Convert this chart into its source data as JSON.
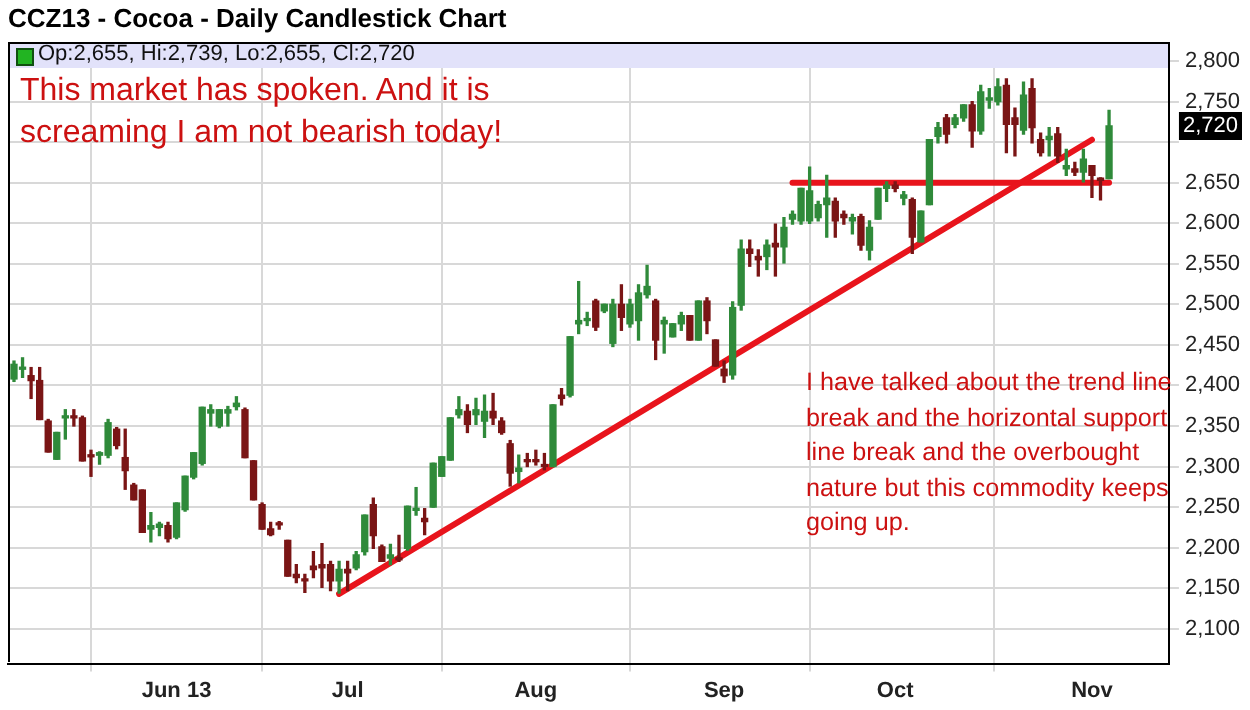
{
  "chart_data": {
    "type": "candlestick",
    "title": "CCZ13 - Cocoa - Daily Candlestick Chart",
    "categories": [
      null,
      null,
      null,
      null,
      null,
      null,
      null,
      null,
      null,
      null,
      null,
      null,
      null,
      null,
      null,
      null,
      null,
      null,
      null,
      "Jun 13",
      null,
      null,
      null,
      null,
      null,
      null,
      null,
      null,
      null,
      null,
      null,
      null,
      null,
      null,
      null,
      null,
      null,
      null,
      null,
      "Jul",
      null,
      null,
      null,
      null,
      null,
      null,
      null,
      null,
      null,
      null,
      null,
      null,
      null,
      null,
      null,
      null,
      null,
      null,
      null,
      null,
      null,
      "Aug",
      null,
      null,
      null,
      null,
      null,
      null,
      null,
      null,
      null,
      null,
      null,
      null,
      null,
      null,
      null,
      null,
      null,
      null,
      null,
      null,
      null,
      "Sep",
      null,
      null,
      null,
      null,
      null,
      null,
      null,
      null,
      null,
      null,
      null,
      null,
      null,
      null,
      null,
      null,
      null,
      null,
      null,
      "Oct",
      null,
      null,
      null,
      null,
      null,
      null,
      null,
      null,
      null,
      null,
      null,
      null,
      null,
      null,
      null,
      null,
      null,
      null,
      null,
      null,
      null,
      null,
      "Nov",
      null,
      null
    ],
    "ohlc": [
      [
        2408,
        2430,
        2405,
        2426
      ],
      [
        2420,
        2434,
        2410,
        2422
      ],
      [
        2412,
        2422,
        2384,
        2406
      ],
      [
        2406,
        2422,
        2358,
        2358
      ],
      [
        2356,
        2358,
        2318,
        2318
      ],
      [
        2309,
        2342,
        2309,
        2342
      ],
      [
        2360,
        2370,
        2334,
        2362
      ],
      [
        2362,
        2370,
        2350,
        2360
      ],
      [
        2360,
        2362,
        2307,
        2307
      ],
      [
        2314,
        2320,
        2288,
        2312
      ],
      [
        2314,
        2318,
        2303,
        2317
      ],
      [
        2314,
        2358,
        2311,
        2354
      ],
      [
        2346,
        2348,
        2322,
        2326
      ],
      [
        2311,
        2346,
        2272,
        2295
      ],
      [
        2277,
        2279,
        2259,
        2259
      ],
      [
        2271,
        2271,
        2219,
        2219
      ],
      [
        2223,
        2243,
        2207,
        2227
      ],
      [
        2225,
        2231,
        2215,
        2229
      ],
      [
        2227,
        2231,
        2207,
        2211
      ],
      [
        2213,
        2255,
        2211,
        2255
      ],
      [
        2247,
        2288,
        2245,
        2288
      ],
      [
        2287,
        2317,
        2285,
        2317
      ],
      [
        2304,
        2373,
        2302,
        2373
      ],
      [
        2366,
        2376,
        2350,
        2370
      ],
      [
        2350,
        2370,
        2348,
        2370
      ],
      [
        2366,
        2374,
        2350,
        2370
      ],
      [
        2374,
        2386,
        2370,
        2378
      ],
      [
        2370,
        2372,
        2311,
        2311
      ],
      [
        2307,
        2307,
        2259,
        2259
      ],
      [
        2253,
        2255,
        2223,
        2223
      ],
      [
        2223,
        2231,
        2215,
        2216
      ],
      [
        2229,
        2232,
        2223,
        2228
      ],
      [
        2209,
        2209,
        2165,
        2165
      ],
      [
        2167,
        2179,
        2157,
        2163
      ],
      [
        2161,
        2167,
        2145,
        2159
      ],
      [
        2177,
        2195,
        2163,
        2173
      ],
      [
        2179,
        2205,
        2151,
        2175
      ],
      [
        2179,
        2183,
        2147,
        2159
      ],
      [
        2159,
        2183,
        2144,
        2173
      ],
      [
        2173,
        2183,
        2147,
        2169
      ],
      [
        2175,
        2195,
        2173,
        2191
      ],
      [
        2195,
        2240,
        2191,
        2240
      ],
      [
        2253,
        2261,
        2199,
        2215
      ],
      [
        2201,
        2203,
        2183,
        2183
      ],
      [
        2187,
        2204,
        2179,
        2191
      ],
      [
        2187,
        2215,
        2183,
        2185
      ],
      [
        2199,
        2251,
        2197,
        2251
      ],
      [
        2246,
        2274,
        2240,
        2248
      ],
      [
        2236,
        2248,
        2216,
        2232
      ],
      [
        2250,
        2304,
        2250,
        2304
      ],
      [
        2288,
        2312,
        2288,
        2312
      ],
      [
        2308,
        2360,
        2308,
        2360
      ],
      [
        2364,
        2386,
        2360,
        2370
      ],
      [
        2368,
        2376,
        2342,
        2352
      ],
      [
        2364,
        2384,
        2352,
        2370
      ],
      [
        2356,
        2388,
        2336,
        2368
      ],
      [
        2368,
        2390,
        2352,
        2360
      ],
      [
        2356,
        2360,
        2340,
        2342
      ],
      [
        2328,
        2332,
        2276,
        2292
      ],
      [
        2294,
        2314,
        2280,
        2298
      ],
      [
        2308,
        2316,
        2300,
        2306
      ],
      [
        2308,
        2320,
        2302,
        2306
      ],
      [
        2302,
        2316,
        2296,
        2300
      ],
      [
        2300,
        2376,
        2300,
        2376
      ],
      [
        2388,
        2396,
        2376,
        2384
      ],
      [
        2388,
        2460,
        2386,
        2460
      ],
      [
        2476,
        2528,
        2464,
        2480
      ],
      [
        2480,
        2490,
        2474,
        2482
      ],
      [
        2504,
        2506,
        2468,
        2472
      ],
      [
        2492,
        2500,
        2490,
        2500
      ],
      [
        2452,
        2506,
        2448,
        2500
      ],
      [
        2500,
        2524,
        2468,
        2484
      ],
      [
        2476,
        2506,
        2472,
        2500
      ],
      [
        2480,
        2524,
        2456,
        2514
      ],
      [
        2512,
        2548,
        2508,
        2522
      ],
      [
        2504,
        2506,
        2432,
        2456
      ],
      [
        2476,
        2484,
        2440,
        2480
      ],
      [
        2460,
        2476,
        2460,
        2476
      ],
      [
        2476,
        2490,
        2468,
        2486
      ],
      [
        2486,
        2486,
        2456,
        2456
      ],
      [
        2456,
        2504,
        2456,
        2504
      ],
      [
        2504,
        2508,
        2464,
        2480
      ],
      [
        2456,
        2456,
        2424,
        2424
      ],
      [
        2420,
        2430,
        2404,
        2412
      ],
      [
        2413,
        2503,
        2408,
        2496
      ],
      [
        2499,
        2579,
        2493,
        2568
      ],
      [
        2568,
        2579,
        2547,
        2563
      ],
      [
        2559,
        2567,
        2535,
        2555
      ],
      [
        2559,
        2579,
        2543,
        2573
      ],
      [
        2575,
        2599,
        2535,
        2571
      ],
      [
        2571,
        2607,
        2551,
        2595
      ],
      [
        2605,
        2615,
        2599,
        2611
      ],
      [
        2603,
        2643,
        2599,
        2643
      ],
      [
        2603,
        2669,
        2600,
        2640
      ],
      [
        2607,
        2627,
        2603,
        2623
      ],
      [
        2623,
        2659,
        2583,
        2631
      ],
      [
        2627,
        2631,
        2583,
        2603
      ],
      [
        2611,
        2615,
        2599,
        2607
      ],
      [
        2603,
        2611,
        2587,
        2607
      ],
      [
        2608,
        2611,
        2567,
        2573
      ],
      [
        2567,
        2603,
        2555,
        2595
      ],
      [
        2605,
        2643,
        2605,
        2643
      ],
      [
        2643,
        2651,
        2627,
        2647
      ],
      [
        2647,
        2651,
        2639,
        2643
      ],
      [
        2631,
        2639,
        2623,
        2635
      ],
      [
        2629,
        2631,
        2563,
        2583
      ],
      [
        2577,
        2615,
        2577,
        2615
      ],
      [
        2623,
        2703,
        2623,
        2703
      ],
      [
        2707,
        2724,
        2699,
        2718
      ],
      [
        2730,
        2734,
        2699,
        2710
      ],
      [
        2722,
        2734,
        2718,
        2730
      ],
      [
        2730,
        2746,
        2726,
        2746
      ],
      [
        2746,
        2750,
        2694,
        2714
      ],
      [
        2714,
        2770,
        2710,
        2762
      ],
      [
        2752,
        2766,
        2742,
        2754
      ],
      [
        2750,
        2778,
        2746,
        2768
      ],
      [
        2770,
        2778,
        2687,
        2722
      ],
      [
        2730,
        2742,
        2683,
        2722
      ],
      [
        2715,
        2774,
        2710,
        2758
      ],
      [
        2766,
        2778,
        2699,
        2718
      ],
      [
        2703,
        2711,
        2683,
        2687
      ],
      [
        2703,
        2718,
        2683,
        2707
      ],
      [
        2710,
        2718,
        2675,
        2683
      ],
      [
        2667,
        2691,
        2659,
        2671
      ],
      [
        2667,
        2675,
        2659,
        2663
      ],
      [
        2663,
        2691,
        2651,
        2679
      ],
      [
        2671,
        2671,
        2632,
        2659
      ],
      [
        2655,
        2656,
        2629,
        2653
      ],
      [
        2655,
        2739,
        2655,
        2720
      ]
    ],
    "series": [
      {
        "type": "line",
        "color": "#e8141c",
        "values": [
          null,
          null,
          null,
          null,
          null,
          null,
          null,
          null,
          null,
          null,
          null,
          null,
          null,
          null,
          null,
          null,
          null,
          null,
          null,
          null,
          null,
          null,
          null,
          null,
          null,
          null,
          null,
          null,
          null,
          null,
          null,
          null,
          null,
          null,
          null,
          null,
          null,
          null,
          2143,
          null,
          null,
          null,
          null,
          null,
          null,
          null,
          null,
          null,
          null,
          null,
          null,
          null,
          null,
          null,
          null,
          null,
          null,
          null,
          null,
          null,
          null,
          null,
          null,
          null,
          null,
          null,
          null,
          null,
          null,
          null,
          null,
          null,
          null,
          null,
          null,
          null,
          null,
          null,
          null,
          null,
          null,
          null,
          null,
          null,
          null,
          null,
          null,
          null,
          null,
          null,
          null,
          null,
          null,
          null,
          null,
          null,
          null,
          null,
          null,
          null,
          null,
          null,
          null,
          null,
          null,
          null,
          null,
          null,
          null,
          null,
          null,
          null,
          null,
          null,
          null,
          null,
          null,
          null,
          null,
          null,
          null,
          null,
          null,
          null,
          null,
          null,
          2703,
          null,
          null
        ]
      },
      {
        "type": "line",
        "color": "#e8141c",
        "values": [
          null,
          null,
          null,
          null,
          null,
          null,
          null,
          null,
          null,
          null,
          null,
          null,
          null,
          null,
          null,
          null,
          null,
          null,
          null,
          null,
          null,
          null,
          null,
          null,
          null,
          null,
          null,
          null,
          null,
          null,
          null,
          null,
          null,
          null,
          null,
          null,
          null,
          null,
          null,
          null,
          null,
          null,
          null,
          null,
          null,
          null,
          null,
          null,
          null,
          null,
          null,
          null,
          null,
          null,
          null,
          null,
          null,
          null,
          null,
          null,
          null,
          null,
          null,
          null,
          null,
          null,
          null,
          null,
          null,
          null,
          null,
          null,
          null,
          null,
          null,
          null,
          null,
          null,
          null,
          null,
          null,
          null,
          null,
          null,
          null,
          null,
          null,
          null,
          null,
          null,
          null,
          2650,
          null,
          null,
          null,
          null,
          null,
          null,
          null,
          null,
          null,
          null,
          null,
          null,
          null,
          null,
          null,
          null,
          null,
          null,
          null,
          null,
          null,
          null,
          null,
          null,
          null,
          null,
          null,
          null,
          null,
          null,
          null,
          null,
          null,
          null,
          null,
          null,
          2650
        ]
      }
    ],
    "ylim": [
      2057,
      2822
    ],
    "yticks": [
      {
        "value": 2100,
        "label": "2,100"
      },
      {
        "value": 2150,
        "label": "2,150"
      },
      {
        "value": 2200,
        "label": "2,200"
      },
      {
        "value": 2250,
        "label": "2,250"
      },
      {
        "value": 2300,
        "label": "2,300"
      },
      {
        "value": 2350,
        "label": "2,350"
      },
      {
        "value": 2400,
        "label": "2,400"
      },
      {
        "value": 2450,
        "label": "2,450"
      },
      {
        "value": 2500,
        "label": "2,500"
      },
      {
        "value": 2550,
        "label": "2,550"
      },
      {
        "value": 2600,
        "label": "2,600"
      },
      {
        "value": 2650,
        "label": "2,650"
      },
      {
        "value": 2700,
        "label": null
      },
      {
        "value": 2750,
        "label": "2,750"
      },
      {
        "value": 2800,
        "label": "2,800"
      }
    ],
    "grid": true,
    "annotations": [
      "Op:2,655, Hi:2,739, Lo:2,655, Cl:2,720",
      "This market has spoken. And it is screaming I am not bearish today!",
      "I have talked about the trend line break and the horizontal support line break and the overbought nature but this commodity keeps going up.",
      "2,720"
    ]
  }
}
